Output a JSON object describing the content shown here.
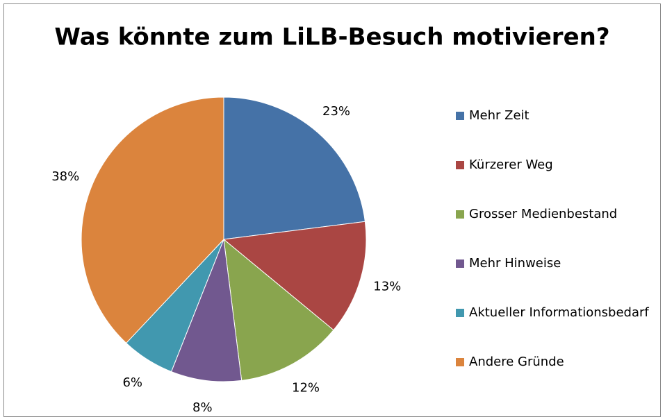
{
  "chart_data": {
    "type": "pie",
    "title": "Was könnte zum LiLB-Besuch motivieren?",
    "categories": [
      "Mehr Zeit",
      "Kürzerer Weg",
      "Grosser Medienbestand",
      "Mehr Hinweise",
      "Aktueller Informationsbedarf",
      "Andere Gründe"
    ],
    "values": [
      23,
      13,
      12,
      8,
      6,
      38
    ],
    "value_labels": [
      "23%",
      "13%",
      "12%",
      "8%",
      "6%",
      "38%"
    ],
    "colors": [
      "#4572a7",
      "#aa4643",
      "#89a54e",
      "#71588f",
      "#4198af",
      "#db843d"
    ],
    "legend": "right"
  }
}
